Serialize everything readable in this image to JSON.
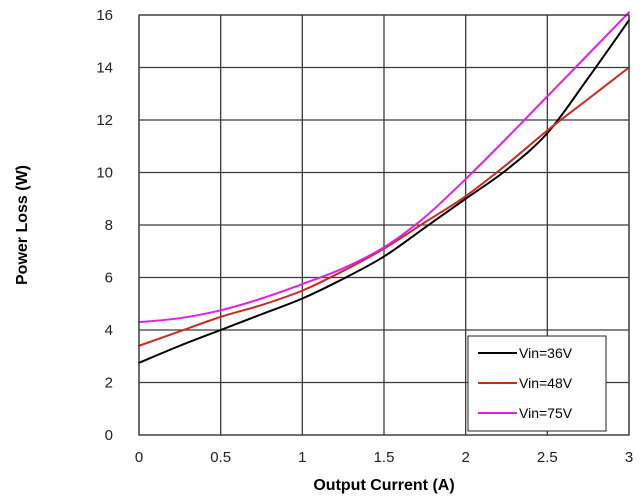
{
  "chart_data": {
    "type": "line",
    "title": "",
    "xlabel": "Output Current (A)",
    "ylabel": "Power Loss (W)",
    "xlim": [
      0,
      3
    ],
    "ylim": [
      0,
      16
    ],
    "x_ticks": [
      "0",
      "0.5",
      "1",
      "1.5",
      "2",
      "2.5",
      "3"
    ],
    "y_ticks": [
      "0",
      "2",
      "4",
      "6",
      "8",
      "10",
      "12",
      "14",
      "16"
    ],
    "grid": true,
    "legend_position": "bottom-right",
    "series": [
      {
        "name": "Vin=36V",
        "color": "#000000",
        "x": [
          0,
          0.25,
          0.5,
          0.75,
          1.0,
          1.25,
          1.5,
          1.75,
          2.0,
          2.25,
          2.5,
          2.75,
          3.0
        ],
        "y": [
          2.75,
          3.4,
          4.0,
          4.6,
          5.2,
          5.95,
          6.8,
          7.9,
          9.0,
          10.1,
          11.5,
          13.6,
          15.8
        ]
      },
      {
        "name": "Vin=48V",
        "color": "#cc2a1e",
        "x": [
          0,
          0.25,
          0.5,
          0.75,
          1.0,
          1.25,
          1.5,
          1.75,
          2.0,
          2.25,
          2.5,
          2.75,
          3.0
        ],
        "y": [
          3.4,
          3.95,
          4.5,
          4.95,
          5.5,
          6.25,
          7.1,
          8.1,
          9.1,
          10.3,
          11.6,
          12.8,
          14.0
        ]
      },
      {
        "name": "Vin=75V",
        "color": "#e020e8",
        "x": [
          0,
          0.25,
          0.5,
          0.75,
          1.0,
          1.25,
          1.5,
          1.75,
          2.0,
          2.25,
          2.5,
          2.75,
          3.0
        ],
        "y": [
          4.3,
          4.45,
          4.75,
          5.2,
          5.75,
          6.35,
          7.15,
          8.3,
          9.75,
          11.3,
          12.9,
          14.5,
          16.1
        ]
      }
    ]
  }
}
